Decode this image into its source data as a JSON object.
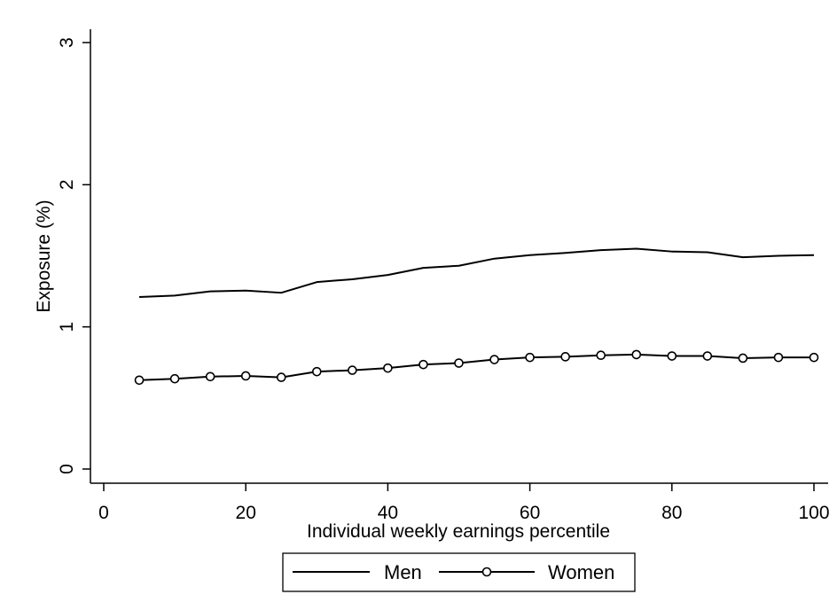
{
  "chart_data": {
    "type": "line",
    "xlabel": "Individual weekly earnings percentile",
    "ylabel": "Exposure (%)",
    "xlim": [
      0,
      100
    ],
    "ylim": [
      0,
      3
    ],
    "x_ticks": [
      "0",
      "20",
      "40",
      "60",
      "80",
      "100"
    ],
    "y_ticks": [
      "0",
      "1",
      "2",
      "3"
    ],
    "grid": false,
    "legend_position": "bottom",
    "x": [
      5,
      10,
      15,
      20,
      25,
      30,
      35,
      40,
      45,
      50,
      55,
      60,
      65,
      70,
      75,
      80,
      85,
      90,
      95,
      100
    ],
    "series": [
      {
        "name": "Men",
        "marker": "none",
        "color": "#000000",
        "values": [
          1.21,
          1.22,
          1.25,
          1.255,
          1.24,
          1.315,
          1.335,
          1.365,
          1.415,
          1.43,
          1.48,
          1.505,
          1.52,
          1.54,
          1.55,
          1.53,
          1.525,
          1.49,
          1.5,
          1.505
        ]
      },
      {
        "name": "Women",
        "marker": "hollow-circle",
        "color": "#000000",
        "values": [
          0.625,
          0.635,
          0.65,
          0.655,
          0.645,
          0.685,
          0.695,
          0.71,
          0.735,
          0.745,
          0.77,
          0.785,
          0.79,
          0.8,
          0.805,
          0.795,
          0.795,
          0.78,
          0.785,
          0.785
        ]
      }
    ]
  }
}
